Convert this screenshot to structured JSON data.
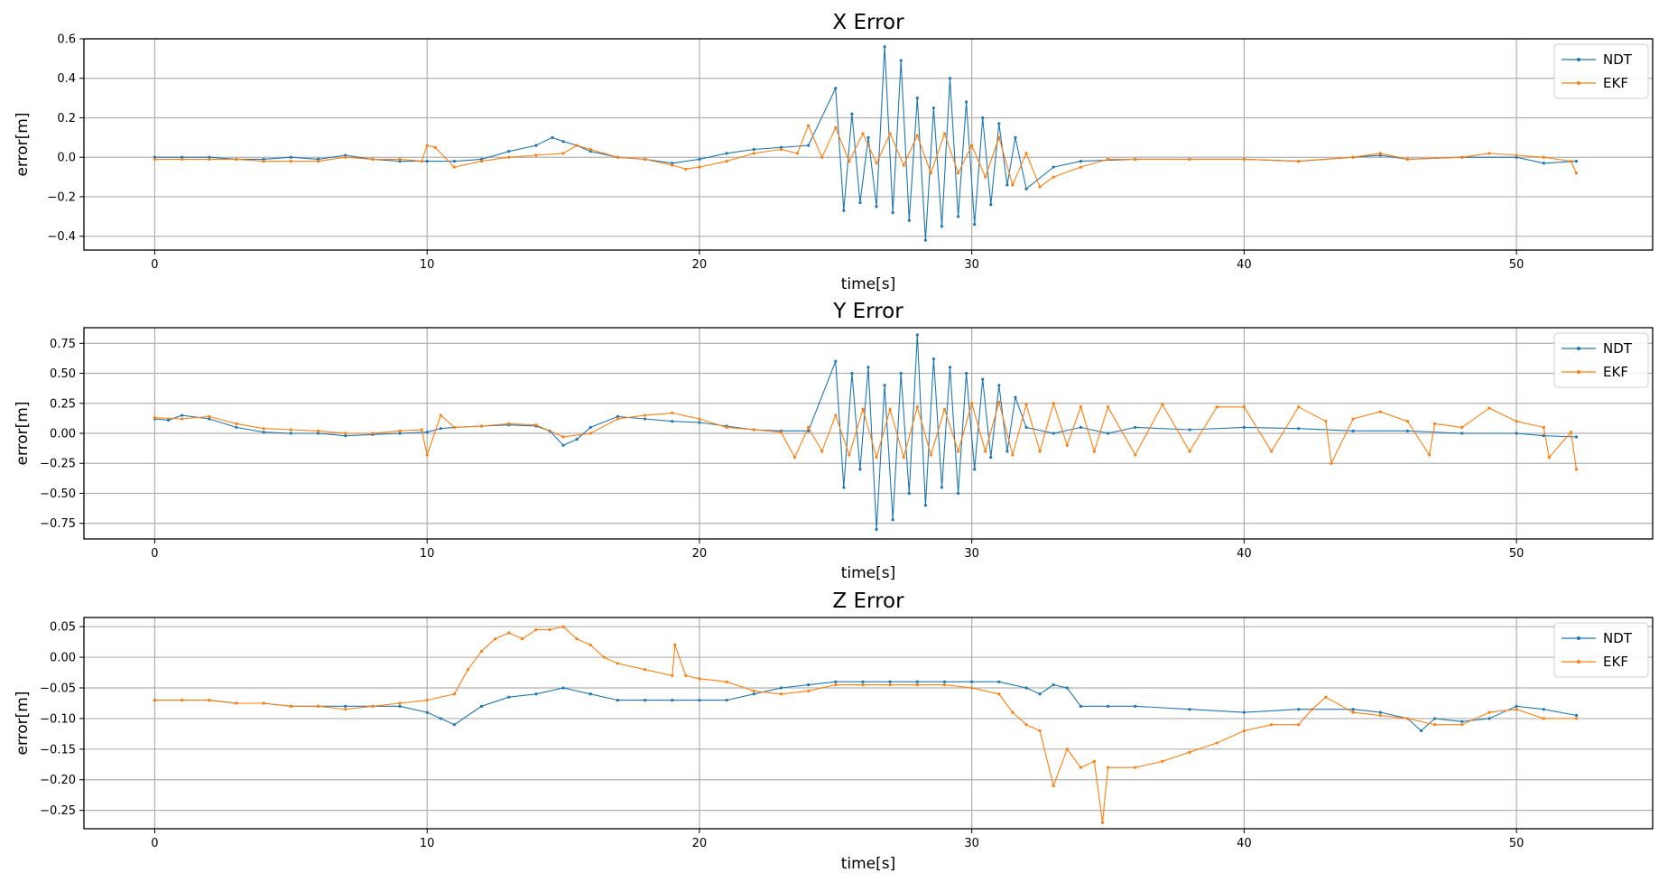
{
  "colors": {
    "ndt": "#1f77b4",
    "ekf": "#ff7f0e",
    "grid": "#b0b0b0",
    "frame": "#000000"
  },
  "chart_data": [
    {
      "type": "line",
      "title": "X Error",
      "xlabel": "time[s]",
      "ylabel": "error[m]",
      "xlim": [
        -2.6,
        55
      ],
      "ylim": [
        -0.47,
        0.6
      ],
      "xticks": [
        0,
        10,
        20,
        30,
        40,
        50
      ],
      "xtick_labels": [
        "0",
        "10",
        "20",
        "30",
        "40",
        "50"
      ],
      "yticks": [
        -0.4,
        -0.2,
        0.0,
        0.2,
        0.4,
        0.6
      ],
      "ytick_labels": [
        "−0.4",
        "−0.2",
        "0.0",
        "0.2",
        "0.4",
        "0.6"
      ],
      "grid": true,
      "legend": "top-right",
      "series": [
        {
          "name": "NDT",
          "x": [
            0,
            1,
            2,
            3,
            4,
            5,
            6,
            7,
            8,
            9,
            10,
            11,
            12,
            13,
            14,
            14.6,
            15,
            15.5,
            16,
            17,
            18,
            19,
            20,
            21,
            22,
            23,
            24,
            25,
            25.3,
            25.6,
            25.9,
            26.2,
            26.5,
            26.8,
            27.1,
            27.4,
            27.7,
            28,
            28.3,
            28.6,
            28.9,
            29.2,
            29.5,
            29.8,
            30.1,
            30.4,
            30.7,
            31,
            31.3,
            31.6,
            32,
            33,
            34,
            36,
            38,
            40,
            42,
            44,
            45,
            46,
            48,
            50,
            51,
            52.2
          ],
          "values": [
            0.0,
            0.0,
            0.0,
            -0.01,
            -0.01,
            0.0,
            -0.01,
            0.01,
            -0.01,
            -0.02,
            -0.02,
            -0.02,
            -0.01,
            0.03,
            0.06,
            0.1,
            0.08,
            0.06,
            0.03,
            0.0,
            -0.01,
            -0.03,
            -0.01,
            0.02,
            0.04,
            0.05,
            0.06,
            0.35,
            -0.27,
            0.22,
            -0.23,
            0.1,
            -0.25,
            0.56,
            -0.28,
            0.49,
            -0.32,
            0.3,
            -0.42,
            0.25,
            -0.35,
            0.4,
            -0.3,
            0.28,
            -0.34,
            0.2,
            -0.24,
            0.17,
            -0.14,
            0.1,
            -0.16,
            -0.05,
            -0.02,
            -0.01,
            -0.01,
            -0.01,
            -0.02,
            0.0,
            0.01,
            -0.01,
            0.0,
            0.0,
            -0.03,
            -0.02
          ]
        },
        {
          "name": "EKF",
          "x": [
            0,
            1,
            2,
            3,
            4,
            5,
            6,
            7,
            8,
            9,
            9.8,
            10,
            10.3,
            11,
            12,
            13,
            14,
            15,
            15.5,
            16,
            17,
            18,
            19,
            19.5,
            20,
            21,
            22,
            23,
            23.6,
            24,
            24.5,
            25,
            25.5,
            26,
            26.5,
            27,
            27.5,
            28,
            28.5,
            29,
            29.5,
            30,
            30.5,
            31,
            31.5,
            32,
            32.5,
            33,
            34,
            35,
            36,
            38,
            40,
            42,
            44,
            45,
            46,
            48,
            49,
            50,
            51,
            52,
            52.2
          ],
          "values": [
            -0.01,
            -0.01,
            -0.01,
            -0.01,
            -0.02,
            -0.02,
            -0.02,
            0.0,
            -0.01,
            -0.01,
            -0.02,
            0.06,
            0.05,
            -0.05,
            -0.02,
            0.0,
            0.01,
            0.02,
            0.06,
            0.04,
            0.0,
            -0.01,
            -0.04,
            -0.06,
            -0.05,
            -0.02,
            0.02,
            0.04,
            0.02,
            0.16,
            0.0,
            0.15,
            -0.02,
            0.12,
            -0.03,
            0.12,
            -0.04,
            0.11,
            -0.08,
            0.12,
            -0.08,
            0.06,
            -0.1,
            0.1,
            -0.14,
            0.02,
            -0.15,
            -0.1,
            -0.05,
            -0.01,
            -0.01,
            -0.01,
            -0.01,
            -0.02,
            0.0,
            0.02,
            -0.01,
            0.0,
            0.02,
            0.01,
            0.0,
            -0.02,
            -0.08
          ]
        }
      ]
    },
    {
      "type": "line",
      "title": "Y Error",
      "xlabel": "time[s]",
      "ylabel": "error[m]",
      "xlim": [
        -2.6,
        55
      ],
      "ylim": [
        -0.88,
        0.88
      ],
      "xticks": [
        0,
        10,
        20,
        30,
        40,
        50
      ],
      "xtick_labels": [
        "0",
        "10",
        "20",
        "30",
        "40",
        "50"
      ],
      "yticks": [
        -0.75,
        -0.5,
        -0.25,
        0.0,
        0.25,
        0.5,
        0.75
      ],
      "ytick_labels": [
        "−0.75",
        "−0.50",
        "−0.25",
        "0.00",
        "0.25",
        "0.50",
        "0.75"
      ],
      "grid": true,
      "legend": "top-right",
      "series": [
        {
          "name": "NDT",
          "x": [
            0,
            0.5,
            1,
            2,
            3,
            4,
            5,
            6,
            7,
            8,
            9,
            10,
            10.5,
            11,
            12,
            13,
            14,
            14.5,
            15,
            15.5,
            16,
            17,
            18,
            19,
            20,
            21,
            22,
            23,
            24,
            25,
            25.3,
            25.6,
            25.9,
            26.2,
            26.5,
            26.8,
            27.1,
            27.4,
            27.7,
            28,
            28.3,
            28.6,
            28.9,
            29.2,
            29.5,
            29.8,
            30.1,
            30.4,
            30.7,
            31,
            31.3,
            31.6,
            32,
            33,
            34,
            35,
            36,
            38,
            40,
            42,
            44,
            46,
            48,
            50,
            51,
            52.2
          ],
          "values": [
            0.12,
            0.11,
            0.15,
            0.12,
            0.05,
            0.01,
            0.0,
            0.0,
            -0.02,
            -0.01,
            0.0,
            0.01,
            0.04,
            0.05,
            0.06,
            0.07,
            0.06,
            0.02,
            -0.1,
            -0.05,
            0.05,
            0.14,
            0.12,
            0.1,
            0.09,
            0.06,
            0.03,
            0.02,
            0.02,
            0.6,
            -0.45,
            0.5,
            -0.3,
            0.55,
            -0.8,
            0.4,
            -0.72,
            0.5,
            -0.5,
            0.82,
            -0.6,
            0.62,
            -0.45,
            0.55,
            -0.5,
            0.5,
            -0.3,
            0.45,
            -0.2,
            0.4,
            -0.15,
            0.3,
            0.05,
            0.0,
            0.05,
            0.0,
            0.05,
            0.03,
            0.05,
            0.04,
            0.02,
            0.02,
            0.0,
            0.0,
            -0.02,
            -0.03
          ]
        },
        {
          "name": "EKF",
          "x": [
            0,
            1,
            2,
            3,
            4,
            5,
            6,
            7,
            8,
            9,
            9.8,
            10,
            10.5,
            11,
            12,
            13,
            14,
            15,
            16,
            17,
            18,
            19,
            20,
            21,
            22,
            23,
            23.5,
            24,
            24.5,
            25,
            25.5,
            26,
            26.5,
            27,
            27.5,
            28,
            28.5,
            29,
            29.5,
            30,
            30.5,
            31,
            31.5,
            32,
            32.5,
            33,
            33.5,
            34,
            34.5,
            35,
            36,
            37,
            38,
            39,
            40,
            41,
            42,
            43,
            43.2,
            44,
            45,
            46,
            46.8,
            47,
            48,
            49,
            50,
            51,
            51.2,
            52,
            52.2
          ],
          "values": [
            0.13,
            0.12,
            0.14,
            0.08,
            0.04,
            0.03,
            0.02,
            0.0,
            0.0,
            0.02,
            0.03,
            -0.18,
            0.15,
            0.05,
            0.06,
            0.08,
            0.07,
            -0.03,
            0.0,
            0.12,
            0.15,
            0.17,
            0.12,
            0.05,
            0.03,
            0.01,
            -0.2,
            0.05,
            -0.15,
            0.15,
            -0.18,
            0.2,
            -0.2,
            0.2,
            -0.2,
            0.22,
            -0.18,
            0.2,
            -0.15,
            0.25,
            -0.15,
            0.26,
            -0.18,
            0.24,
            -0.15,
            0.25,
            -0.1,
            0.22,
            -0.15,
            0.22,
            -0.18,
            0.24,
            -0.15,
            0.22,
            0.22,
            -0.15,
            0.22,
            0.1,
            -0.25,
            0.12,
            0.18,
            0.1,
            -0.18,
            0.08,
            0.05,
            0.21,
            0.1,
            0.05,
            -0.2,
            0.01,
            -0.3
          ]
        }
      ]
    },
    {
      "type": "line",
      "title": "Z Error",
      "xlabel": "time[s]",
      "ylabel": "error[m]",
      "xlim": [
        -2.6,
        55
      ],
      "ylim": [
        -0.28,
        0.065
      ],
      "xticks": [
        0,
        10,
        20,
        30,
        40,
        50
      ],
      "xtick_labels": [
        "0",
        "10",
        "20",
        "30",
        "40",
        "50"
      ],
      "yticks": [
        -0.25,
        -0.2,
        -0.15,
        -0.1,
        -0.05,
        0.0,
        0.05
      ],
      "ytick_labels": [
        "−0.25",
        "−0.20",
        "−0.15",
        "−0.10",
        "−0.05",
        "0.00",
        "0.05"
      ],
      "grid": true,
      "legend": "top-right",
      "series": [
        {
          "name": "NDT",
          "x": [
            0,
            1,
            2,
            3,
            4,
            5,
            6,
            7,
            8,
            9,
            10,
            10.5,
            11,
            12,
            13,
            14,
            15,
            16,
            17,
            18,
            19,
            20,
            21,
            22,
            23,
            24,
            25,
            26,
            27,
            28,
            29,
            30,
            31,
            32,
            32.5,
            33,
            33.5,
            34,
            35,
            36,
            38,
            40,
            42,
            44,
            45,
            46,
            46.5,
            47,
            48,
            49,
            50,
            51,
            52.2
          ],
          "values": [
            -0.07,
            -0.07,
            -0.07,
            -0.075,
            -0.075,
            -0.08,
            -0.08,
            -0.08,
            -0.08,
            -0.08,
            -0.09,
            -0.1,
            -0.11,
            -0.08,
            -0.065,
            -0.06,
            -0.05,
            -0.06,
            -0.07,
            -0.07,
            -0.07,
            -0.07,
            -0.07,
            -0.06,
            -0.05,
            -0.045,
            -0.04,
            -0.04,
            -0.04,
            -0.04,
            -0.04,
            -0.04,
            -0.04,
            -0.05,
            -0.06,
            -0.045,
            -0.05,
            -0.08,
            -0.08,
            -0.08,
            -0.085,
            -0.09,
            -0.085,
            -0.085,
            -0.09,
            -0.1,
            -0.12,
            -0.1,
            -0.105,
            -0.1,
            -0.08,
            -0.085,
            -0.095
          ]
        },
        {
          "name": "EKF",
          "x": [
            0,
            1,
            2,
            3,
            4,
            5,
            6,
            7,
            8,
            9,
            10,
            11,
            11.5,
            12,
            12.5,
            13,
            13.5,
            14,
            14.5,
            15,
            15.5,
            16,
            16.5,
            17,
            18,
            19,
            19.1,
            19.5,
            20,
            21,
            22,
            23,
            24,
            25,
            26,
            27,
            28,
            29,
            30,
            31,
            31.5,
            32,
            32.5,
            33,
            33.5,
            34,
            34.5,
            34.8,
            35,
            36,
            37,
            38,
            39,
            40,
            41,
            42,
            42.5,
            43,
            44,
            45,
            46,
            47,
            48,
            49,
            50,
            51,
            52.2
          ],
          "values": [
            -0.07,
            -0.07,
            -0.07,
            -0.075,
            -0.075,
            -0.08,
            -0.08,
            -0.085,
            -0.08,
            -0.075,
            -0.07,
            -0.06,
            -0.02,
            0.01,
            0.03,
            0.04,
            0.03,
            0.045,
            0.045,
            0.05,
            0.03,
            0.02,
            0.0,
            -0.01,
            -0.02,
            -0.03,
            0.02,
            -0.03,
            -0.035,
            -0.04,
            -0.055,
            -0.06,
            -0.055,
            -0.045,
            -0.045,
            -0.045,
            -0.045,
            -0.045,
            -0.05,
            -0.06,
            -0.09,
            -0.11,
            -0.12,
            -0.21,
            -0.15,
            -0.18,
            -0.17,
            -0.27,
            -0.18,
            -0.18,
            -0.17,
            -0.155,
            -0.14,
            -0.12,
            -0.11,
            -0.11,
            -0.085,
            -0.065,
            -0.09,
            -0.095,
            -0.1,
            -0.11,
            -0.11,
            -0.09,
            -0.085,
            -0.1,
            -0.1
          ]
        }
      ]
    }
  ]
}
